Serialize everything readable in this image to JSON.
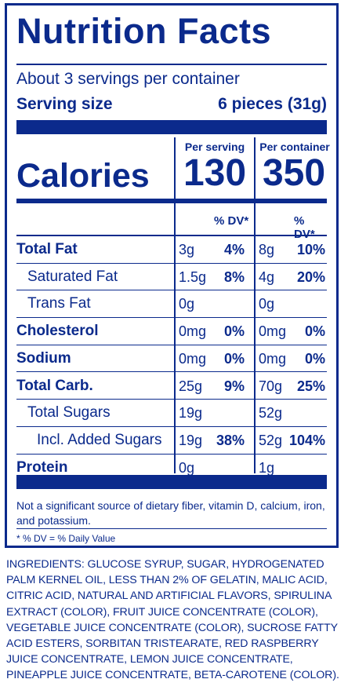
{
  "title": "Nutrition Facts",
  "servings_per_container": "About 3 servings per container",
  "serving_size_label": "Serving size",
  "serving_size_value": "6 pieces (31g)",
  "col_per_serving": "Per serving",
  "col_per_container": "Per container",
  "calories_label": "Calories",
  "calories_serving": "130",
  "calories_container": "350",
  "dv_header": "% DV*",
  "nutrients": [
    {
      "label": "Total Fat",
      "bold": true,
      "indent": 0,
      "s_amt": "3g",
      "s_pct": "4%",
      "c_amt": "8g",
      "c_pct": "10%"
    },
    {
      "label": "Saturated Fat",
      "bold": false,
      "indent": 1,
      "s_amt": "1.5g",
      "s_pct": "8%",
      "c_amt": "4g",
      "c_pct": "20%"
    },
    {
      "label": "Trans Fat",
      "bold": false,
      "indent": 1,
      "s_amt": "0g",
      "s_pct": "",
      "c_amt": "0g",
      "c_pct": ""
    },
    {
      "label": "Cholesterol",
      "bold": true,
      "indent": 0,
      "s_amt": "0mg",
      "s_pct": "0%",
      "c_amt": "0mg",
      "c_pct": "0%"
    },
    {
      "label": "Sodium",
      "bold": true,
      "indent": 0,
      "s_amt": "0mg",
      "s_pct": "0%",
      "c_amt": "0mg",
      "c_pct": "0%"
    },
    {
      "label": "Total Carb.",
      "bold": true,
      "indent": 0,
      "s_amt": "25g",
      "s_pct": "9%",
      "c_amt": "70g",
      "c_pct": "25%"
    },
    {
      "label": "Total Sugars",
      "bold": false,
      "indent": 1,
      "s_amt": "19g",
      "s_pct": "",
      "c_amt": "52g",
      "c_pct": ""
    },
    {
      "label": "Incl. Added Sugars",
      "bold": false,
      "indent": 2,
      "s_amt": "19g",
      "s_pct": "38%",
      "c_amt": "52g",
      "c_pct": "104%"
    },
    {
      "label": "Protein",
      "bold": true,
      "indent": 0,
      "s_amt": "0g",
      "s_pct": "",
      "c_amt": "1g",
      "c_pct": ""
    }
  ],
  "footnote_sources": "Not a significant source of dietary fiber, vitamin D, calcium, iron, and potassium.",
  "footnote_dv": "* % DV = % Daily Value",
  "ingredients": "INGREDIENTS: GLUCOSE SYRUP, SUGAR, HYDROGENATED PALM KERNEL OIL, LESS THAN 2% OF GELATIN, MALIC ACID, CITRIC ACID, NATURAL AND ARTIFICIAL FLAVORS, SPIRULINA EXTRACT (COLOR), FRUIT JUICE CONCENTRATE (COLOR), VEGETABLE JUICE CONCENTRATE (COLOR), SUCROSE FATTY ACID ESTERS, SORBITAN TRISTEARATE, RED RASPBERRY JUICE CONCENTRATE, LEMON JUICE CONCENTRATE, PINEAPPLE JUICE CONCENTRATE, BETA-CAROTENE (COLOR).",
  "colors": {
    "label_blue": "#0b2a8c"
  }
}
